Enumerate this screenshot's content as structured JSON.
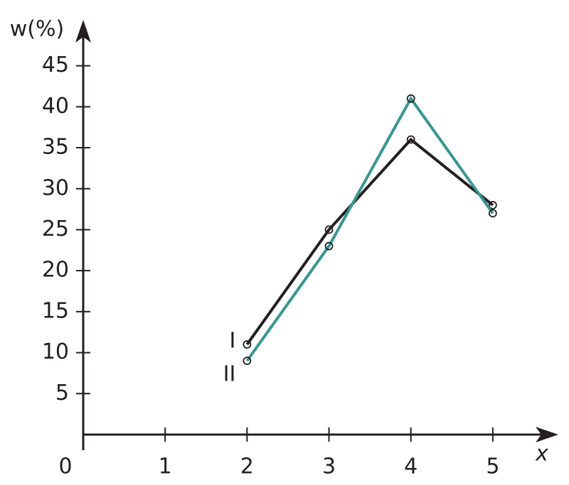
{
  "chart_data": {
    "type": "line",
    "x_label": "x",
    "y_label": "w(%)",
    "x": [
      2,
      3,
      4,
      5
    ],
    "series": [
      {
        "name": "I",
        "color": "#231f20",
        "values": [
          11,
          25,
          36,
          28
        ]
      },
      {
        "name": "II",
        "color": "#3a9690",
        "values": [
          9,
          23,
          41,
          27
        ]
      }
    ],
    "xlim": [
      0,
      5.8
    ],
    "ylim": [
      0,
      50.6
    ],
    "xticks": [
      0,
      1,
      2,
      3,
      4,
      5
    ],
    "yticks": [
      5,
      10,
      15,
      20,
      25,
      30,
      35,
      40,
      45
    ],
    "grid": false
  }
}
